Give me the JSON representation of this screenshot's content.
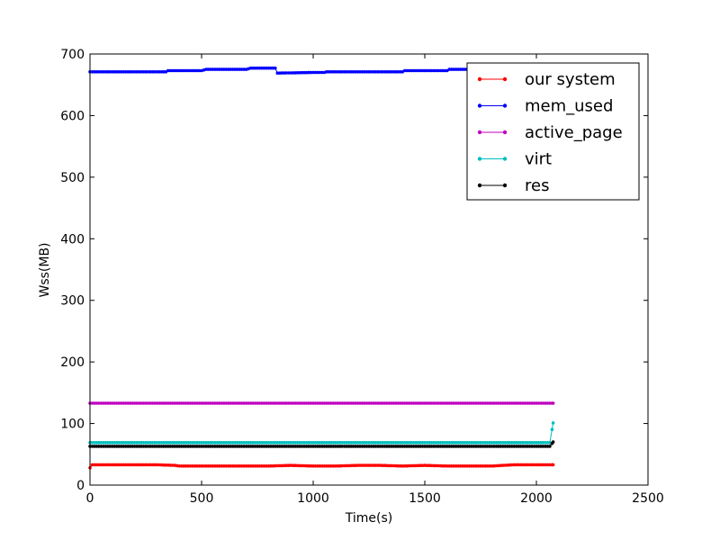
{
  "chart_data": {
    "type": "line",
    "title": "",
    "xlabel": "Time(s)",
    "ylabel": "Wss(MB)",
    "xlim": [
      0,
      2500
    ],
    "ylim": [
      0,
      700
    ],
    "xticks": [
      0,
      500,
      1000,
      1500,
      2000,
      2500
    ],
    "yticks": [
      0,
      100,
      200,
      300,
      400,
      500,
      600,
      700
    ],
    "grid": false,
    "legend_position": "top-right",
    "series": [
      {
        "name": "our system",
        "color": "#ff0000",
        "x": [
          0,
          10,
          100,
          200,
          300,
          380,
          400,
          500,
          600,
          700,
          800,
          900,
          1000,
          1100,
          1200,
          1300,
          1400,
          1500,
          1600,
          1700,
          1800,
          1900,
          2000,
          2075
        ],
        "y": [
          28,
          33,
          33,
          33,
          33,
          32,
          31,
          31,
          31,
          31,
          31,
          32,
          31,
          31,
          32,
          32,
          31,
          32,
          31,
          31,
          31,
          33,
          33,
          33
        ]
      },
      {
        "name": "mem_used",
        "color": "#0000ff",
        "x": [
          0,
          340,
          350,
          500,
          520,
          700,
          720,
          830,
          840,
          1000,
          1050,
          1060,
          1200,
          1400,
          1410,
          1600,
          1610,
          1700
        ],
        "y": [
          671,
          671,
          673,
          673,
          675,
          675,
          677,
          677,
          669,
          670,
          670,
          671,
          671,
          671,
          673,
          673,
          675,
          675
        ]
      },
      {
        "name": "active_page",
        "color": "#bf00bf",
        "x": [
          0,
          500,
          1000,
          1500,
          2000,
          2075
        ],
        "y": [
          133,
          133,
          133,
          133,
          133,
          133
        ]
      },
      {
        "name": "virt",
        "color": "#00bfbf",
        "x": [
          0,
          500,
          1000,
          1500,
          2000,
          2060,
          2075
        ],
        "y": [
          69,
          69,
          69,
          69,
          69,
          69,
          101
        ]
      },
      {
        "name": "res",
        "color": "#000000",
        "x": [
          0,
          500,
          1000,
          1500,
          2000,
          2060,
          2075
        ],
        "y": [
          63,
          63,
          63,
          63,
          63,
          63,
          70
        ]
      }
    ]
  }
}
